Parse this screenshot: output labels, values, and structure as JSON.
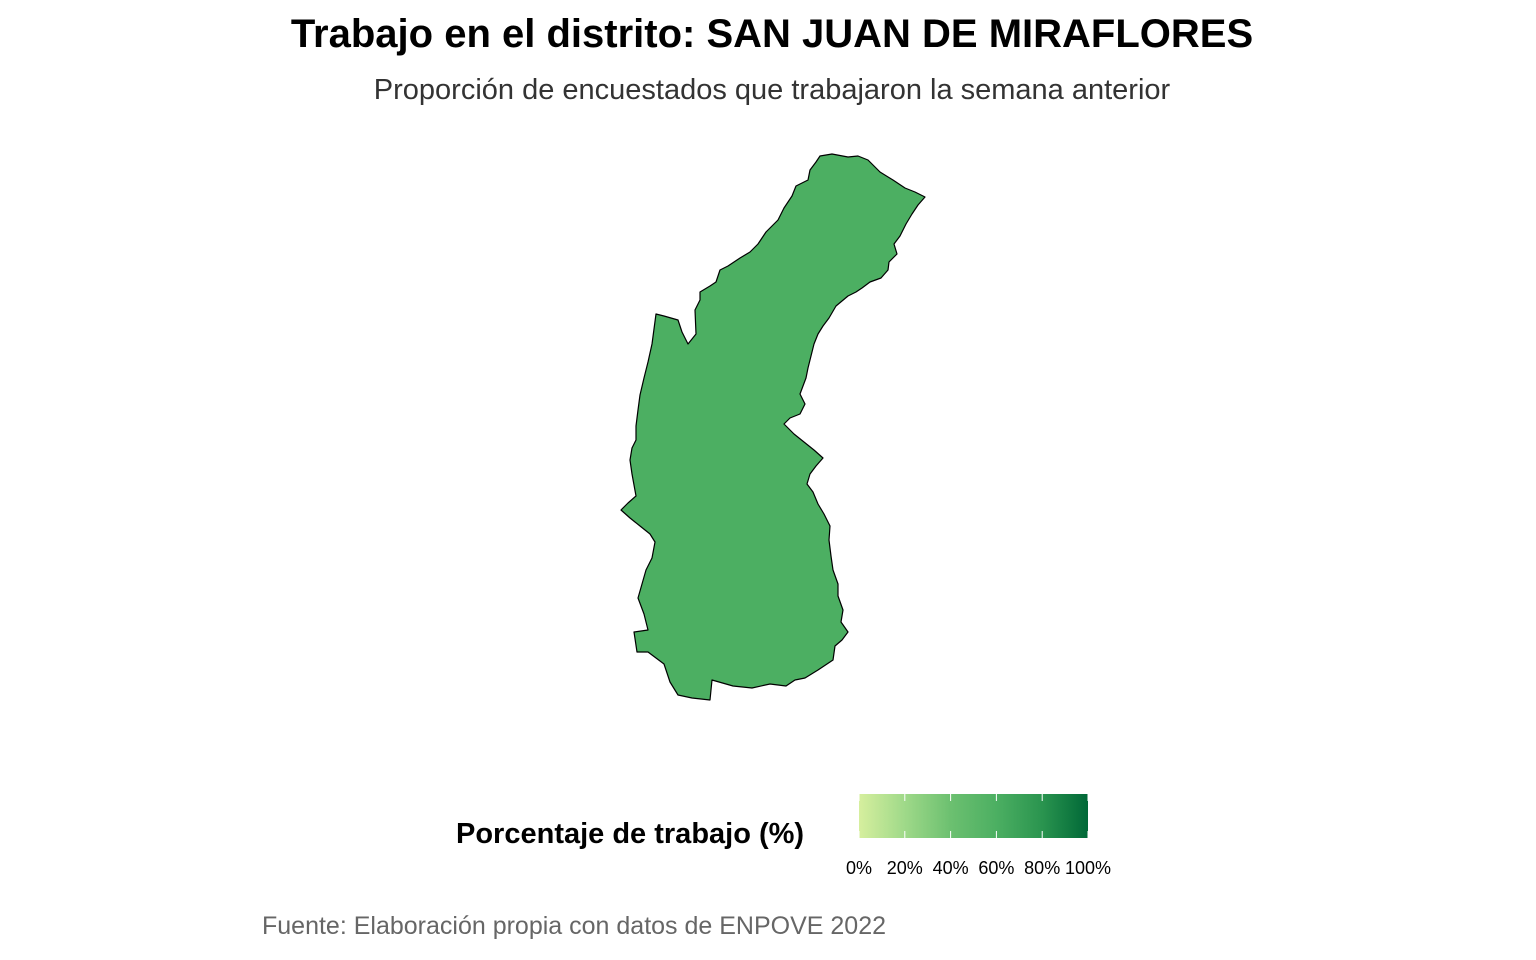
{
  "title": "Trabajo en el distrito: SAN JUAN DE MIRAFLORES",
  "subtitle": "Proporción de encuestados que trabajaron la semana anterior",
  "caption": "Fuente: Elaboración propia con datos de ENPOVE 2022",
  "map": {
    "region": "SAN JUAN DE MIRAFLORES",
    "value_percent": 60,
    "fill_color": "#4caf62",
    "border_color": "#000000"
  },
  "legend": {
    "title": "Porcentaje de trabajo (%)",
    "colors": [
      "#d6ef9e",
      "#9fd989",
      "#6cc070",
      "#4caf62",
      "#2a944f",
      "#006837"
    ],
    "ticks": [
      {
        "value": 0,
        "label": "0%"
      },
      {
        "value": 20,
        "label": "20%"
      },
      {
        "value": 40,
        "label": "40%"
      },
      {
        "value": 60,
        "label": "60%"
      },
      {
        "value": 80,
        "label": "80%"
      },
      {
        "value": 100,
        "label": "100%"
      }
    ]
  }
}
